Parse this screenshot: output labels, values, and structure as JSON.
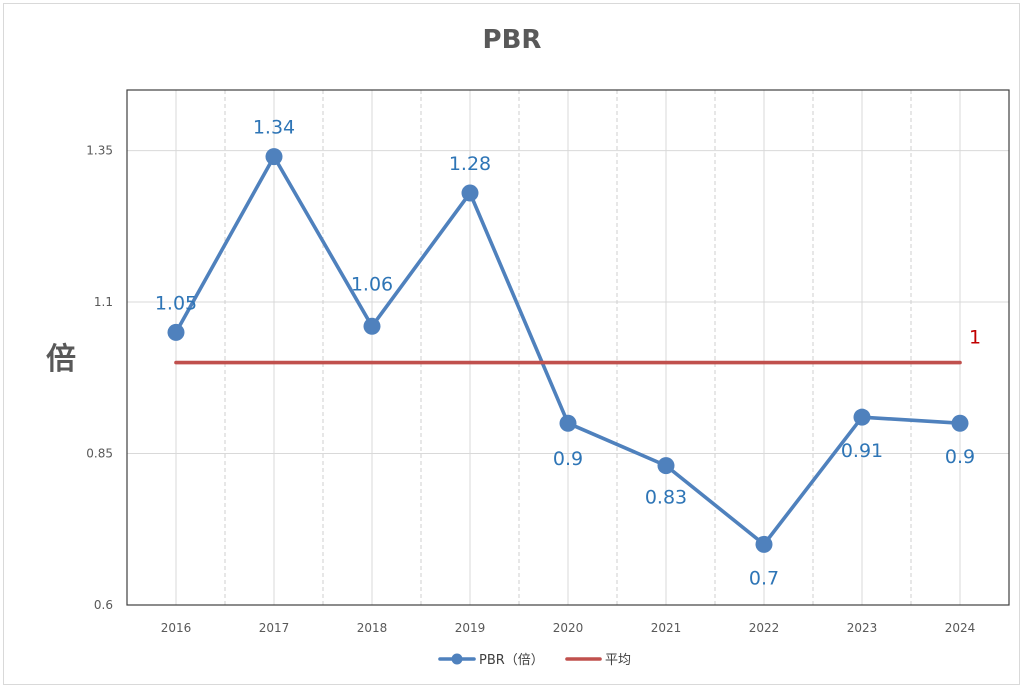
{
  "chart_data": {
    "type": "line",
    "title": "PBR",
    "ylabel": "倍",
    "categories": [
      "2016",
      "2017",
      "2018",
      "2019",
      "2020",
      "2021",
      "2022",
      "2023",
      "2024"
    ],
    "series": [
      {
        "name": "PBR（倍）",
        "values": [
          1.05,
          1.34,
          1.06,
          1.28,
          0.9,
          0.83,
          0.7,
          0.91,
          0.9
        ],
        "color": "#4f81bd",
        "markers": true,
        "data_labels": true,
        "end_label": false,
        "label_color": "#2e75b6"
      },
      {
        "name": "平均",
        "values": [
          1,
          1,
          1,
          1,
          1,
          1,
          1,
          1,
          1
        ],
        "color": "#c0504d",
        "markers": false,
        "data_labels": false,
        "end_label": true,
        "label_color": "#c00000"
      }
    ],
    "yticks": [
      0.6,
      0.85,
      1.1,
      1.35
    ],
    "ylim": [
      0.6,
      1.45
    ],
    "grid": true,
    "legend": "bottom"
  }
}
